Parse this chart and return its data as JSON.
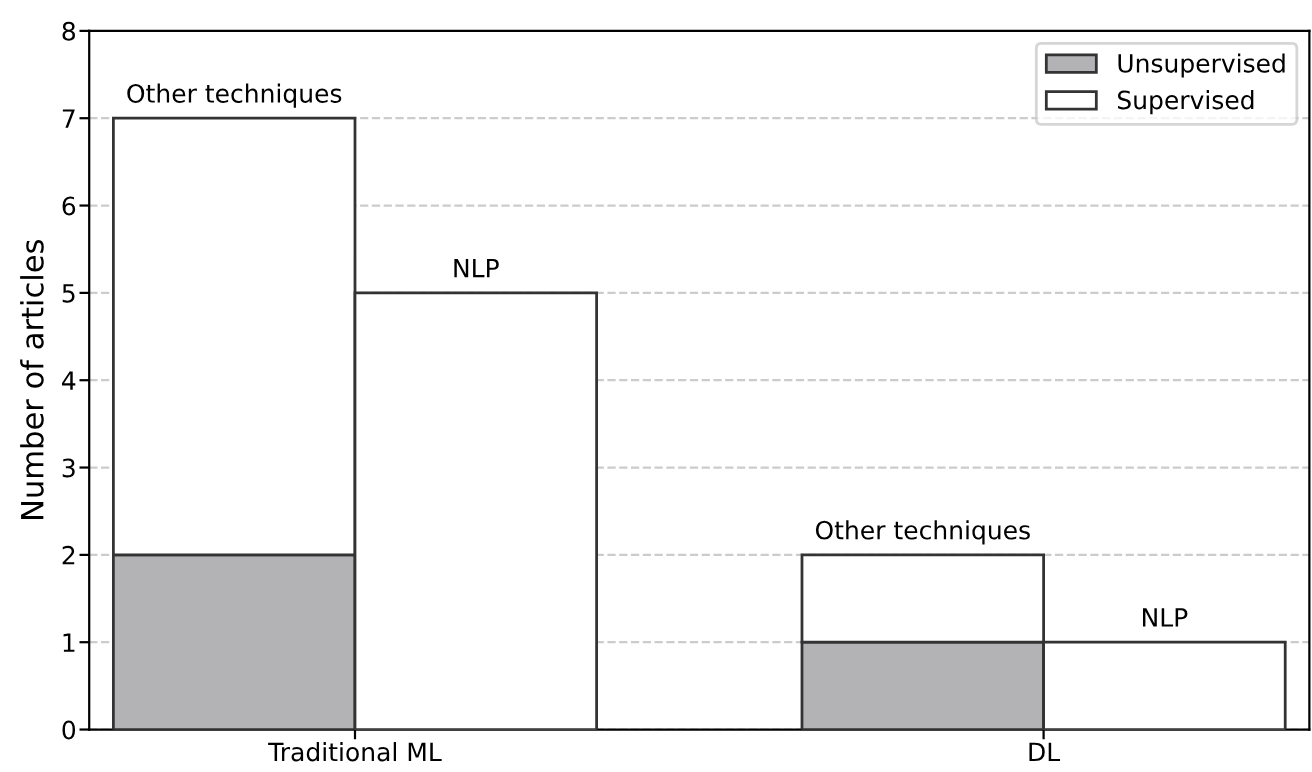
{
  "chart_data": {
    "type": "bar",
    "stacked": true,
    "ylabel": "Number of articles",
    "categories": [
      null,
      null,
      null,
      null
    ],
    "series": [
      {
        "name": "Unsupervised",
        "color": "#b3b3b5",
        "values": [
          2,
          0,
          1,
          0
        ]
      },
      {
        "name": "Supervised",
        "color": "#ffffff",
        "values": [
          5,
          5,
          1,
          1
        ]
      }
    ],
    "ylim": [
      0,
      8
    ],
    "yticks": [
      0,
      1,
      2,
      3,
      4,
      5,
      6,
      7,
      8
    ],
    "grid": "y",
    "legend": "top right",
    "annotations": [
      {
        "text": "Other techniques",
        "y": 7
      },
      {
        "text": "NLP",
        "y": 5
      },
      {
        "text": "Other techniques",
        "y": 2
      },
      {
        "text": "NLP",
        "y": 1
      },
      "Traditional ML",
      "DL"
    ]
  }
}
